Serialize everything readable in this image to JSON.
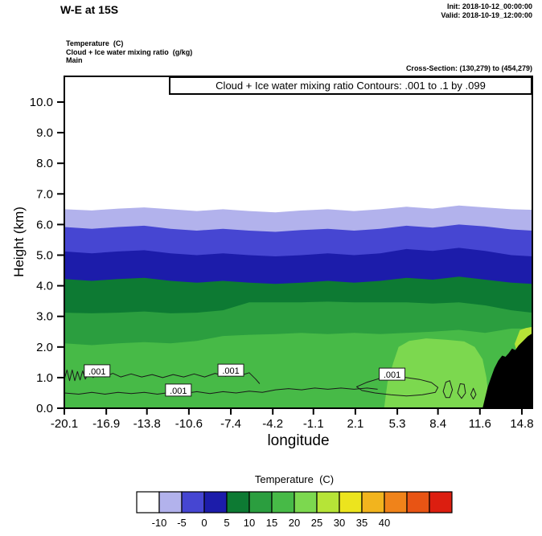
{
  "header": {
    "title": "W-E at 15S",
    "init_line": "Init: 2018-10-12_00:00:00",
    "valid_line": "Valid: 2018-10-19_12:00:00",
    "field_line_1": "Temperature  (C)",
    "field_line_2": "Cloud + Ice water mixing ratio  (g/kg)",
    "field_line_3": "Main",
    "cross_section": "Cross-Section: (130,279) to (454,279)"
  },
  "plot": {
    "contour_note": "Cloud + Ice water mixing ratio Contours: .001 to .1 by .099",
    "ylabel": "Height (km)",
    "xlabel": "longitude"
  },
  "chart_data": {
    "type": "area",
    "title": "W-E at 15S",
    "subtitle": "Temperature (C) filled contours with Cloud + Ice water mixing ratio contours (.001 to .1 by .099) on a W-E vertical cross section at 15S",
    "xlabel": "longitude",
    "ylabel": "Height (km)",
    "xlim": [
      -20.1,
      15.6
    ],
    "ylim": [
      0,
      10.84
    ],
    "grid": false,
    "x_tick_values": [
      -20.1,
      -16.9,
      -13.8,
      -10.6,
      -7.4,
      -4.2,
      -1.1,
      2.1,
      5.3,
      8.4,
      11.6,
      14.8
    ],
    "x_tick_labels": [
      "-20.1",
      "-16.9",
      "-13.8",
      "-10.6",
      "-7.4",
      "-4.2",
      "-1.1",
      "2.1",
      "5.3",
      "8.4",
      "11.6",
      "14.8"
    ],
    "y_tick_values": [
      0,
      1,
      2,
      3,
      4,
      5,
      6,
      7,
      8,
      9,
      10
    ],
    "y_tick_labels": [
      "0.0",
      "1.0",
      "2.0",
      "3.0",
      "4.0",
      "5.0",
      "6.0",
      "7.0",
      "8.0",
      "9.0",
      "10.0"
    ],
    "background_band": {
      "range": "below -10 C",
      "color": "#ffffff"
    },
    "sample_lons": [
      -20.1,
      -18,
      -16,
      -14,
      -12,
      -10,
      -8,
      -6,
      -4,
      -2,
      0,
      2,
      4,
      6,
      8,
      10,
      12,
      14,
      15.6
    ],
    "bands": [
      {
        "range": "-10 to -5 C",
        "color": "#b2b2ec",
        "top_km": [
          6.5,
          6.46,
          6.52,
          6.56,
          6.5,
          6.44,
          6.5,
          6.44,
          6.4,
          6.46,
          6.5,
          6.44,
          6.5,
          6.58,
          6.52,
          6.62,
          6.56,
          6.5,
          6.48
        ]
      },
      {
        "range": "-5 to 0 C",
        "color": "#4646d2",
        "top_km": [
          5.92,
          5.86,
          5.92,
          5.96,
          5.86,
          5.8,
          5.86,
          5.8,
          5.76,
          5.82,
          5.86,
          5.8,
          5.86,
          5.96,
          5.9,
          6.0,
          5.94,
          5.84,
          5.8
        ]
      },
      {
        "range": "0 to 5 C",
        "color": "#1c1caa",
        "top_km": [
          5.12,
          5.06,
          5.12,
          5.16,
          5.06,
          5.0,
          5.06,
          5.0,
          4.96,
          5.0,
          5.06,
          5.0,
          5.06,
          5.2,
          5.14,
          5.24,
          5.14,
          5.0,
          4.96
        ]
      },
      {
        "range": "5 to 10 C",
        "color": "#0d7a33",
        "top_km": [
          4.22,
          4.16,
          4.22,
          4.26,
          4.16,
          4.1,
          4.16,
          4.1,
          4.06,
          4.1,
          4.16,
          4.1,
          4.16,
          4.26,
          4.2,
          4.3,
          4.2,
          4.1,
          4.06
        ]
      },
      {
        "range": "10 to 15 C",
        "color": "#2b9e3f",
        "top_km": [
          3.12,
          3.1,
          3.12,
          3.16,
          3.1,
          3.12,
          3.2,
          3.46,
          3.46,
          3.46,
          3.48,
          3.46,
          3.46,
          3.46,
          3.42,
          3.46,
          3.36,
          3.2,
          3.12
        ]
      },
      {
        "range": "15 to 20 C",
        "color": "#47ba47",
        "top_km": [
          2.12,
          2.06,
          2.12,
          2.16,
          2.12,
          2.2,
          2.36,
          2.4,
          2.42,
          2.46,
          2.42,
          2.46,
          2.42,
          2.46,
          2.5,
          2.56,
          2.46,
          2.6,
          2.6
        ]
      }
    ],
    "overlays": [
      {
        "range": "20 to 25 C",
        "color": "#7cd84f",
        "points": [
          [
            4.3,
            0.03
          ],
          [
            4.55,
            0.85
          ],
          [
            5.0,
            1.5
          ],
          [
            5.4,
            2.0
          ],
          [
            6.2,
            2.2
          ],
          [
            7.5,
            2.28
          ],
          [
            9.0,
            2.24
          ],
          [
            10.4,
            2.18
          ],
          [
            11.2,
            2.0
          ],
          [
            11.8,
            1.6
          ],
          [
            12.1,
            1.0
          ],
          [
            12.25,
            0.4
          ],
          [
            12.3,
            0.03
          ]
        ]
      },
      {
        "range": "25 to 30 C",
        "color": "#b6e437",
        "points": [
          [
            14.25,
            2.1
          ],
          [
            14.65,
            2.55
          ],
          [
            15.1,
            2.62
          ],
          [
            15.6,
            2.66
          ],
          [
            15.6,
            1.3
          ],
          [
            15.0,
            1.42
          ],
          [
            14.5,
            1.7
          ]
        ]
      }
    ],
    "terrain_km": [
      [
        11.8,
        0
      ],
      [
        12.0,
        0.35
      ],
      [
        12.2,
        0.7
      ],
      [
        12.45,
        1.0
      ],
      [
        12.7,
        1.3
      ],
      [
        13.0,
        1.55
      ],
      [
        13.3,
        1.72
      ],
      [
        13.55,
        1.68
      ],
      [
        13.8,
        1.8
      ],
      [
        14.05,
        1.95
      ],
      [
        14.3,
        1.9
      ],
      [
        14.55,
        2.05
      ],
      [
        14.9,
        2.2
      ],
      [
        15.25,
        2.35
      ],
      [
        15.6,
        2.45
      ],
      [
        15.6,
        0
      ]
    ],
    "cloud_contours": [
      {
        "closed": false,
        "points": [
          [
            -20.1,
            0.95
          ],
          [
            -19.9,
            1.25
          ],
          [
            -19.7,
            0.9
          ],
          [
            -19.5,
            1.25
          ],
          [
            -19.3,
            0.9
          ],
          [
            -19.1,
            1.2
          ],
          [
            -18.9,
            0.92
          ],
          [
            -18.7,
            1.22
          ],
          [
            -18.5,
            0.95
          ],
          [
            -18.2,
            1.2
          ],
          [
            -17.9,
            1.0
          ],
          [
            -17.5,
            1.18
          ],
          [
            -17.0,
            1.02
          ],
          [
            -16.4,
            1.14
          ],
          [
            -15.8,
            1.02
          ],
          [
            -15.0,
            1.12
          ],
          [
            -14.2,
            1.02
          ],
          [
            -13.4,
            1.1
          ],
          [
            -12.6,
            1.0
          ],
          [
            -11.8,
            1.1
          ],
          [
            -11.0,
            1.02
          ],
          [
            -10.2,
            1.12
          ],
          [
            -9.4,
            1.02
          ],
          [
            -8.6,
            1.14
          ],
          [
            -7.8,
            1.04
          ],
          [
            -7.2,
            1.2
          ],
          [
            -6.6,
            1.08
          ],
          [
            -6.0,
            1.16
          ],
          [
            -5.5,
            0.95
          ],
          [
            -5.2,
            0.8
          ]
        ]
      },
      {
        "closed": false,
        "points": [
          [
            -20.1,
            0.5
          ],
          [
            -19,
            0.46
          ],
          [
            -18,
            0.52
          ],
          [
            -17,
            0.46
          ],
          [
            -16,
            0.52
          ],
          [
            -15,
            0.48
          ],
          [
            -14,
            0.52
          ],
          [
            -13,
            0.46
          ],
          [
            -12,
            0.52
          ],
          [
            -11,
            0.48
          ],
          [
            -10,
            0.54
          ],
          [
            -9,
            0.48
          ],
          [
            -8,
            0.54
          ],
          [
            -7,
            0.5
          ],
          [
            -6,
            0.56
          ],
          [
            -5,
            0.52
          ],
          [
            -4,
            0.6
          ],
          [
            -3,
            0.64
          ],
          [
            -2,
            0.6
          ],
          [
            -1,
            0.66
          ],
          [
            0,
            0.62
          ],
          [
            1,
            0.66
          ],
          [
            2,
            0.62
          ],
          [
            3,
            0.66
          ],
          [
            3.8,
            0.62
          ]
        ]
      },
      {
        "closed": true,
        "points": [
          [
            2.2,
            0.7
          ],
          [
            3.0,
            0.85
          ],
          [
            4.0,
            0.98
          ],
          [
            5.0,
            1.04
          ],
          [
            6.0,
            1.0
          ],
          [
            7.0,
            0.94
          ],
          [
            7.9,
            0.84
          ],
          [
            8.4,
            0.68
          ],
          [
            8.2,
            0.52
          ],
          [
            7.2,
            0.44
          ],
          [
            6.0,
            0.4
          ],
          [
            4.8,
            0.44
          ],
          [
            3.6,
            0.5
          ],
          [
            2.6,
            0.58
          ]
        ]
      },
      {
        "closed": true,
        "points": [
          [
            8.8,
            0.55
          ],
          [
            9.0,
            0.85
          ],
          [
            9.3,
            0.9
          ],
          [
            9.5,
            0.6
          ],
          [
            9.3,
            0.35
          ],
          [
            9.0,
            0.35
          ]
        ]
      },
      {
        "closed": true,
        "points": [
          [
            9.9,
            0.5
          ],
          [
            10.1,
            0.8
          ],
          [
            10.4,
            0.78
          ],
          [
            10.5,
            0.5
          ],
          [
            10.2,
            0.32
          ]
        ]
      },
      {
        "closed": true,
        "points": [
          [
            10.9,
            0.45
          ],
          [
            11.1,
            0.65
          ],
          [
            11.3,
            0.45
          ],
          [
            11.1,
            0.3
          ]
        ]
      }
    ],
    "cloud_contour_labels": [
      {
        "text": ".001",
        "lon": -17.6,
        "km": 1.21
      },
      {
        "text": ".001",
        "lon": -11.4,
        "km": 0.58
      },
      {
        "text": ".001",
        "lon": -7.4,
        "km": 1.23
      },
      {
        "text": ".001",
        "lon": 4.9,
        "km": 1.1
      }
    ],
    "colorbar": {
      "title": "Temperature  (C)",
      "tick_labels": [
        "-10",
        "-5",
        "0",
        "5",
        "10",
        "15",
        "20",
        "25",
        "30",
        "35",
        "40"
      ],
      "colors": [
        "#ffffff",
        "#b2b2ec",
        "#4646d2",
        "#1c1caa",
        "#0d7a33",
        "#2b9e3f",
        "#47ba47",
        "#7cd84f",
        "#b6e437",
        "#ece41e",
        "#f2b41e",
        "#f0831a",
        "#e85414",
        "#dc1e10"
      ]
    }
  }
}
